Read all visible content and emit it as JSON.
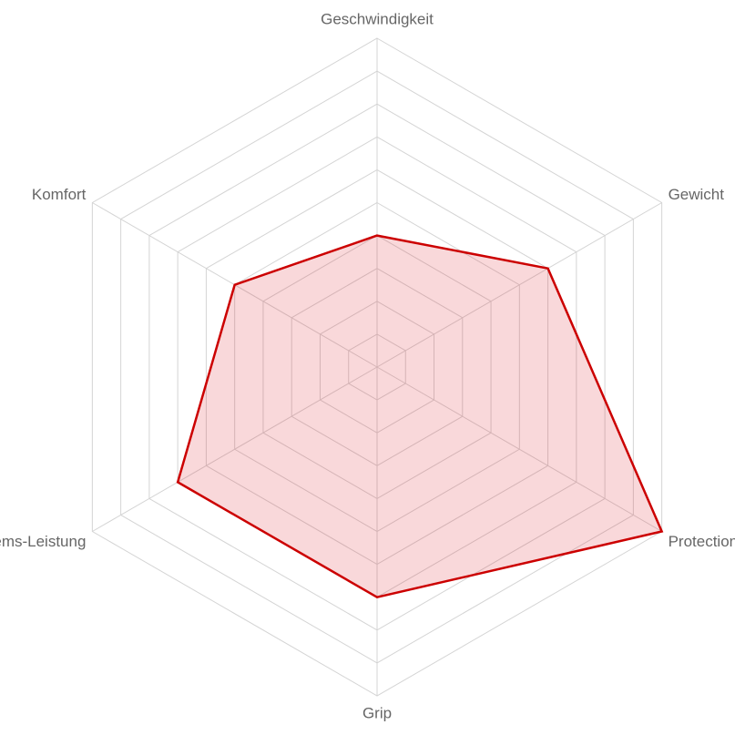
{
  "chart_data": {
    "type": "radar",
    "categories": [
      "Geschwindigkeit",
      "Gewicht",
      "Protection",
      "Grip",
      "Brems-Leistung",
      "Komfort"
    ],
    "values": [
      4,
      6,
      10,
      7,
      7,
      5
    ],
    "color": "#cc0000",
    "fill": "rgba(220, 40, 50, 0.18)",
    "rlim": [
      0,
      10
    ],
    "rticks": [
      1,
      2,
      3,
      4,
      5,
      6,
      7,
      8,
      9,
      10
    ],
    "grid": true
  }
}
